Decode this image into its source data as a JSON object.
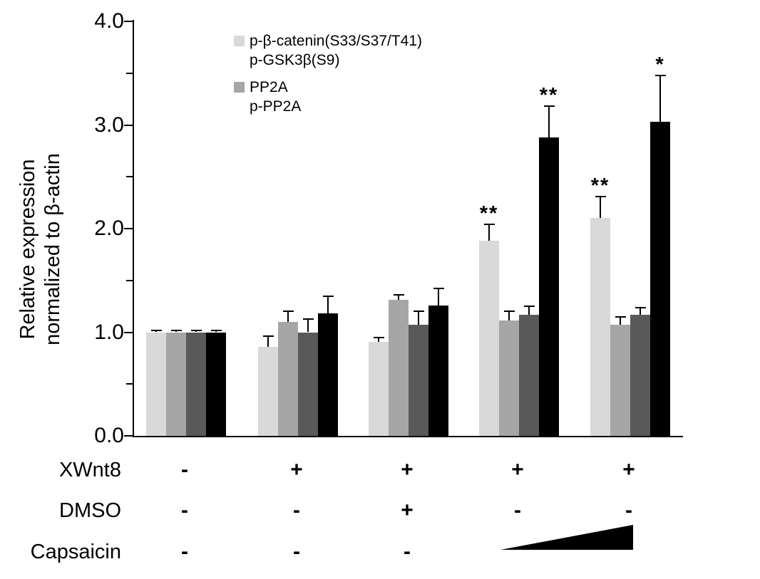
{
  "figure": {
    "y_axis": {
      "title_line1": "Relative expression",
      "title_line2": "normalized to β-actin",
      "tick_labels": [
        "0.0",
        "1.0",
        "2.0",
        "3.0",
        "4.0"
      ]
    },
    "legend": {
      "entries": [
        {
          "swatch_color": "#d9d9d9",
          "line1": "p-β-catenin(S33/S37/T41)",
          "line2": "p-GSK3β(S9)"
        },
        {
          "swatch_color": "#a6a6a6",
          "line1": "PP2A",
          "line2": "p-PP2A"
        }
      ]
    },
    "conditions": {
      "rows": [
        {
          "label": "XWnt8",
          "values": [
            "-",
            "+",
            "+",
            "+",
            "+"
          ]
        },
        {
          "label": "DMSO",
          "values": [
            "-",
            "-",
            "+",
            "-",
            "-"
          ]
        },
        {
          "label": "Capsaicin",
          "values": [
            "-",
            "-",
            "-",
            "",
            ""
          ]
        }
      ],
      "capsaicin_wedge": "increasing-dose-wedge"
    }
  },
  "chart_data": {
    "type": "bar",
    "title": "",
    "xlabel": "",
    "ylabel": "Relative expression normalized to β-actin",
    "ylim": [
      0,
      4.0
    ],
    "yticks": [
      0,
      1,
      2,
      3,
      4
    ],
    "minor_yticks": [
      0.5,
      1.5,
      2.5,
      3.5
    ],
    "grid": false,
    "legend_position": "inside-top-left",
    "categories": [
      "XWnt8 - / DMSO - / Capsaicin -",
      "XWnt8 + / DMSO - / Capsaicin -",
      "XWnt8 + / DMSO + / Capsaicin -",
      "XWnt8 + / DMSO - / Capsaicin low",
      "XWnt8 + / DMSO - / Capsaicin high"
    ],
    "series": [
      {
        "name": "p-β-catenin(S33/S37/T41)",
        "color": "#d9d9d9",
        "values": [
          1.0,
          0.86,
          0.91,
          1.88,
          2.1
        ],
        "errors": [
          0.02,
          0.1,
          0.04,
          0.16,
          0.21
        ],
        "significance": [
          "",
          "",
          "",
          "**",
          "**"
        ]
      },
      {
        "name": "p-GSK3β(S9)",
        "color": "#a6a6a6",
        "values": [
          1.0,
          1.1,
          1.31,
          1.11,
          1.07
        ],
        "errors": [
          0.02,
          0.1,
          0.05,
          0.09,
          0.08
        ],
        "significance": [
          "",
          "",
          "",
          "",
          ""
        ]
      },
      {
        "name": "PP2A",
        "color": "#595959",
        "values": [
          1.0,
          1.0,
          1.07,
          1.17,
          1.17
        ],
        "errors": [
          0.02,
          0.13,
          0.13,
          0.08,
          0.07
        ],
        "significance": [
          "",
          "",
          "",
          "",
          ""
        ]
      },
      {
        "name": "p-PP2A",
        "color": "#000000",
        "values": [
          1.0,
          1.18,
          1.26,
          2.88,
          3.03
        ],
        "errors": [
          0.02,
          0.17,
          0.16,
          0.3,
          0.45
        ],
        "significance": [
          "",
          "",
          "",
          "**",
          "*"
        ]
      }
    ]
  }
}
